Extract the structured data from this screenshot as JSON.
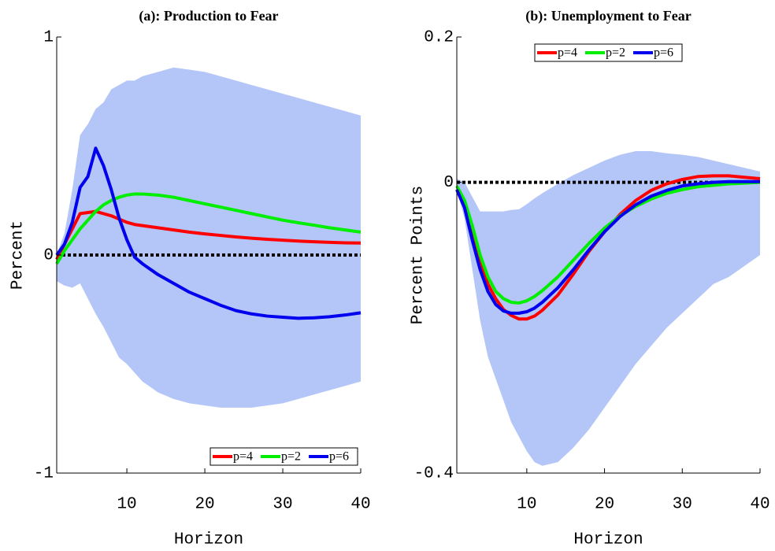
{
  "chart_data": [
    {
      "type": "line",
      "title": "(a): Production to Fear",
      "xlabel": "Horizon",
      "ylabel": "Percent",
      "x": [
        1,
        2,
        3,
        4,
        5,
        6,
        7,
        8,
        9,
        10,
        11,
        12,
        14,
        16,
        18,
        20,
        22,
        24,
        26,
        28,
        30,
        32,
        34,
        36,
        38,
        40
      ],
      "xlim": [
        1,
        40
      ],
      "xticks": [
        10,
        20,
        30,
        40
      ],
      "ylim": [
        -1,
        1
      ],
      "yticks": [
        -1,
        0,
        1
      ],
      "legend": "lower right",
      "reference_line": 0,
      "band": {
        "color": "#b3c6f7",
        "upper": [
          0,
          0.1,
          0.3,
          0.55,
          0.6,
          0.67,
          0.7,
          0.76,
          0.78,
          0.8,
          0.8,
          0.82,
          0.84,
          0.86,
          0.85,
          0.84,
          0.82,
          0.8,
          0.78,
          0.76,
          0.74,
          0.72,
          0.7,
          0.68,
          0.66,
          0.64
        ],
        "lower": [
          -0.12,
          -0.14,
          -0.15,
          -0.13,
          -0.2,
          -0.27,
          -0.33,
          -0.4,
          -0.47,
          -0.5,
          -0.54,
          -0.58,
          -0.63,
          -0.66,
          -0.68,
          -0.69,
          -0.7,
          -0.7,
          -0.7,
          -0.69,
          -0.68,
          -0.66,
          -0.64,
          -0.62,
          -0.6,
          -0.58
        ]
      },
      "series": [
        {
          "name": "p=4",
          "color": "#ff0000",
          "values": [
            -0.02,
            0.05,
            0.12,
            0.19,
            0.195,
            0.2,
            0.19,
            0.18,
            0.165,
            0.15,
            0.14,
            0.135,
            0.125,
            0.115,
            0.105,
            0.097,
            0.09,
            0.083,
            0.077,
            0.072,
            0.068,
            0.064,
            0.061,
            0.058,
            0.056,
            0.055
          ]
        },
        {
          "name": "p=2",
          "color": "#00ee00",
          "values": [
            -0.04,
            0.02,
            0.07,
            0.12,
            0.16,
            0.2,
            0.23,
            0.25,
            0.265,
            0.275,
            0.28,
            0.28,
            0.275,
            0.265,
            0.25,
            0.235,
            0.22,
            0.205,
            0.19,
            0.175,
            0.16,
            0.148,
            0.137,
            0.125,
            0.115,
            0.105
          ]
        },
        {
          "name": "p=6",
          "color": "#0000ee",
          "values": [
            0,
            0.05,
            0.15,
            0.31,
            0.36,
            0.49,
            0.41,
            0.3,
            0.17,
            0.07,
            -0.01,
            -0.04,
            -0.09,
            -0.13,
            -0.17,
            -0.2,
            -0.23,
            -0.255,
            -0.27,
            -0.28,
            -0.285,
            -0.29,
            -0.288,
            -0.283,
            -0.275,
            -0.265
          ]
        }
      ]
    },
    {
      "type": "line",
      "title": "(b): Unemployment to Fear",
      "xlabel": "Horizon",
      "ylabel": "Percent Points",
      "x": [
        1,
        2,
        3,
        4,
        5,
        6,
        7,
        8,
        9,
        10,
        11,
        12,
        14,
        16,
        18,
        20,
        22,
        24,
        26,
        28,
        30,
        32,
        34,
        36,
        38,
        40
      ],
      "xlim": [
        1,
        40
      ],
      "xticks": [
        10,
        20,
        30,
        40
      ],
      "ylim": [
        -0.4,
        0.2
      ],
      "yticks": [
        -0.4,
        0,
        0.2
      ],
      "legend": "upper center",
      "reference_line": 0,
      "band": {
        "color": "#b3c6f7",
        "upper": [
          0.005,
          0,
          -0.02,
          -0.04,
          -0.04,
          -0.04,
          -0.04,
          -0.038,
          -0.037,
          -0.03,
          -0.022,
          -0.015,
          -0.002,
          0.01,
          0.02,
          0.03,
          0.038,
          0.043,
          0.043,
          0.04,
          0.038,
          0.035,
          0.03,
          0.025,
          0.02,
          0.015
        ],
        "lower": [
          -0.01,
          -0.05,
          -0.12,
          -0.19,
          -0.24,
          -0.27,
          -0.3,
          -0.33,
          -0.35,
          -0.37,
          -0.385,
          -0.39,
          -0.385,
          -0.365,
          -0.34,
          -0.31,
          -0.28,
          -0.25,
          -0.225,
          -0.2,
          -0.18,
          -0.16,
          -0.14,
          -0.13,
          -0.115,
          -0.1
        ]
      },
      "series": [
        {
          "name": "p=4",
          "color": "#ff0000",
          "values": [
            -0.01,
            -0.03,
            -0.07,
            -0.11,
            -0.14,
            -0.16,
            -0.175,
            -0.183,
            -0.188,
            -0.188,
            -0.184,
            -0.176,
            -0.155,
            -0.126,
            -0.095,
            -0.068,
            -0.044,
            -0.025,
            -0.011,
            -0.002,
            0.004,
            0.008,
            0.009,
            0.009,
            0.007,
            0.005
          ]
        },
        {
          "name": "p=2",
          "color": "#00ee00",
          "values": [
            -0.005,
            -0.025,
            -0.06,
            -0.1,
            -0.13,
            -0.15,
            -0.16,
            -0.165,
            -0.166,
            -0.163,
            -0.157,
            -0.149,
            -0.13,
            -0.107,
            -0.084,
            -0.063,
            -0.046,
            -0.033,
            -0.023,
            -0.015,
            -0.01,
            -0.006,
            -0.004,
            -0.002,
            -0.001,
            0
          ]
        },
        {
          "name": "p=6",
          "color": "#0000ee",
          "values": [
            -0.01,
            -0.035,
            -0.08,
            -0.12,
            -0.15,
            -0.168,
            -0.177,
            -0.18,
            -0.18,
            -0.178,
            -0.173,
            -0.165,
            -0.145,
            -0.12,
            -0.093,
            -0.068,
            -0.047,
            -0.031,
            -0.019,
            -0.011,
            -0.005,
            -0.002,
            0,
            0.001,
            0.001,
            0.001
          ]
        }
      ]
    }
  ]
}
